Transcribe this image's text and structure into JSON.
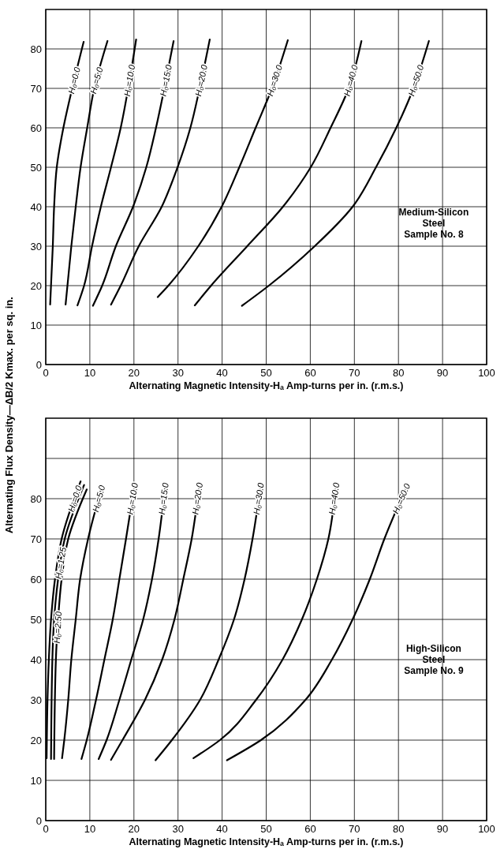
{
  "chart_data": [
    {
      "type": "line",
      "xlabel": "Alternating Magnetic Intensity-Hₐ Amp-turns per in. (r.m.s.)",
      "ylabel": "Alternating Flux Density—ΔB/2 Kmax. per sq. in.",
      "xlim": [
        0,
        100
      ],
      "ylim": [
        0,
        90
      ],
      "xticks": [
        0,
        10,
        20,
        30,
        40,
        50,
        60,
        70,
        80,
        90,
        100
      ],
      "yticks": [
        0,
        10,
        20,
        30,
        40,
        50,
        60,
        70,
        80
      ],
      "grid": true,
      "marker": "none",
      "line_style": "solid",
      "annotations": [
        "Medium-Silicon\nSteel\nSample No. 8"
      ],
      "series": [
        {
          "name": "H₀=0.0",
          "color": "#000000",
          "x": [
            1.0,
            1.6,
            1.9,
            2.5,
            4.0,
            6.0,
            8.6
          ],
          "values": [
            15.2,
            30,
            40,
            50,
            60,
            70,
            81.8
          ]
        },
        {
          "name": "H₀=5.0",
          "color": "#000000",
          "x": [
            4.5,
            5.8,
            6.8,
            7.9,
            9.4,
            11.0,
            14.0
          ],
          "values": [
            15.2,
            30,
            40,
            50,
            60,
            70,
            82
          ]
        },
        {
          "name": "H₀=10.0",
          "color": "#000000",
          "x": [
            7.2,
            8.7,
            10.5,
            12.5,
            14.8,
            17.0,
            18.7,
            20.5
          ],
          "values": [
            15,
            20,
            30,
            40,
            50,
            60,
            70,
            82.4
          ]
        },
        {
          "name": "H₀=15.0",
          "color": "#000000",
          "x": [
            10.7,
            12.8,
            15.9,
            19.8,
            22.8,
            25.0,
            26.9,
            29.0
          ],
          "values": [
            14.9,
            20,
            30,
            40,
            50,
            60,
            70,
            82
          ]
        },
        {
          "name": "H₀=20.0",
          "color": "#000000",
          "x": [
            14.8,
            17.0,
            21.1,
            26.3,
            29.9,
            32.8,
            34.9,
            37.2
          ],
          "values": [
            15.2,
            20,
            30,
            40,
            50,
            60,
            70,
            82.4
          ]
        },
        {
          "name": "H₀=30.0",
          "color": "#000000",
          "x": [
            25.4,
            27.8,
            34.6,
            39.9,
            43.9,
            47.6,
            51.3,
            54.9
          ],
          "values": [
            17.1,
            20,
            30,
            40,
            50,
            60,
            70,
            82.2
          ]
        },
        {
          "name": "H₀=40.0",
          "color": "#000000",
          "x": [
            33.8,
            37.5,
            45.7,
            53.8,
            60.1,
            64.6,
            68.7,
            71.6
          ],
          "values": [
            15,
            20,
            30,
            40,
            50,
            60,
            70,
            82
          ]
        },
        {
          "name": "H₀=50.0",
          "color": "#000000",
          "x": [
            44.5,
            50.6,
            61.0,
            69.6,
            74.9,
            79.5,
            83.4,
            86.9
          ],
          "values": [
            14.9,
            20,
            30,
            40,
            50,
            60,
            70,
            82
          ]
        }
      ]
    },
    {
      "type": "line",
      "xlabel": "Alternating Magnetic Intensity-Hₐ Amp-turns per in. (r.m.s.)",
      "xlim": [
        0,
        100
      ],
      "ylim": [
        0,
        100
      ],
      "xticks": [
        0,
        10,
        20,
        30,
        40,
        50,
        60,
        70,
        80,
        90,
        100
      ],
      "yticks": [
        0,
        10,
        20,
        30,
        40,
        50,
        60,
        70,
        80,
        {
          "value": 90,
          "label": null
        }
      ],
      "grid": true,
      "marker": "none",
      "line_style": "solid",
      "annotations": [
        "High-Silicon\nSteel\nSample No. 9"
      ],
      "series": [
        {
          "name": "H₀=0.0",
          "color": "#000000",
          "x": [
            0.2,
            0.4,
            0.7,
            1.2,
            2.1,
            3.6,
            7.9
          ],
          "values": [
            15.5,
            30,
            40,
            50,
            60,
            70,
            84.3
          ]
        },
        {
          "name": "H₀=1.25",
          "color": "#000000",
          "x": [
            1.2,
            1.5,
            1.9,
            2.8,
            4.3,
            8.7
          ],
          "values": [
            15.3,
            40,
            50,
            60,
            70,
            83.4
          ]
        },
        {
          "name": "H₀=2.50",
          "color": "#000000",
          "x": [
            1.9,
            2.3,
            2.8,
            3.6,
            5.1,
            9.3
          ],
          "values": [
            15.3,
            40,
            50,
            60,
            70,
            82.3
          ]
        },
        {
          "name": "H₀=5.0",
          "color": "#000000",
          "x": [
            3.7,
            4.2,
            5.1,
            5.8,
            6.8,
            7.8,
            9.6,
            12.6
          ],
          "values": [
            15.5,
            20,
            30,
            40,
            50,
            60,
            70,
            82.4
          ]
        },
        {
          "name": "H₀=10.0",
          "color": "#000000",
          "x": [
            8.1,
            9.3,
            11.4,
            13.3,
            15.2,
            16.7,
            18.2,
            20.0
          ],
          "values": [
            15.3,
            20,
            30,
            40,
            50,
            60,
            70,
            82.4
          ]
        },
        {
          "name": "H₀=15.0",
          "color": "#000000",
          "x": [
            12.0,
            13.8,
            16.7,
            19.4,
            22.1,
            24.1,
            25.6,
            27.0
          ],
          "values": [
            15.3,
            20,
            30,
            40,
            50,
            60,
            70,
            82.4
          ]
        },
        {
          "name": "H₀=20.0",
          "color": "#000000",
          "x": [
            14.8,
            17.4,
            22.5,
            26.4,
            29.2,
            31.2,
            33.1,
            34.8
          ],
          "values": [
            15.1,
            20,
            30,
            40,
            50,
            60,
            70,
            83
          ]
        },
        {
          "name": "H₀=30.0",
          "color": "#000000",
          "x": [
            24.9,
            28.6,
            35.0,
            39.2,
            42.7,
            45.1,
            46.9,
            48.7
          ],
          "values": [
            15,
            20,
            30,
            40,
            50,
            60,
            70,
            83
          ]
        },
        {
          "name": "H₀=40.0",
          "color": "#000000",
          "x": [
            33.5,
            39.5,
            47.7,
            53.7,
            58.1,
            61.5,
            64.1,
            65.8
          ],
          "values": [
            15.5,
            20,
            30,
            40,
            50,
            60,
            70,
            83
          ]
        },
        {
          "name": "H₀=50.0",
          "color": "#000000",
          "x": [
            41.1,
            48.8,
            58.9,
            64.9,
            69.6,
            73.5,
            76.8,
            81.7
          ],
          "values": [
            15,
            20,
            30,
            40,
            50,
            60,
            70,
            82.7
          ]
        }
      ]
    }
  ]
}
